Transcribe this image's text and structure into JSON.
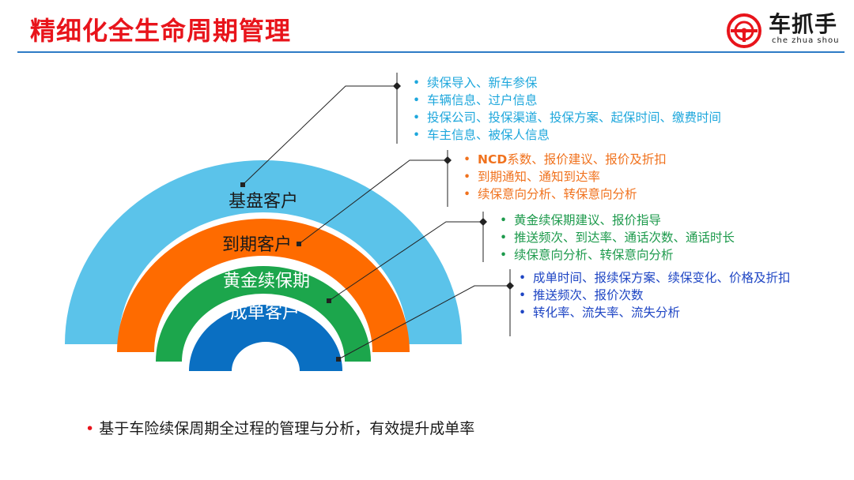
{
  "title": "精细化全生命周期管理",
  "logo": {
    "text": "车抓手",
    "subtext": "che zhua shou",
    "icon": "steering-wheel-logo-icon"
  },
  "rings": [
    {
      "label": "基盘客户",
      "color": "#5bc3ea"
    },
    {
      "label": "到期客户",
      "color": "#fe6b00"
    },
    {
      "label": "黄金续保期",
      "color": "#1ca64c"
    },
    {
      "label": "成单客户",
      "color": "#0a6fc2"
    }
  ],
  "groups": [
    {
      "items": [
        "续保导入、新车参保",
        "车辆信息、过户信息",
        "投保公司、投保渠道、投保方案、起保时间、缴费时间",
        "车主信息、被保人信息"
      ]
    },
    {
      "prefix": "NCD",
      "items": [
        "系数、报价建议、报价及折扣",
        "到期通知、通知到达率",
        "续保意向分析、转保意向分析"
      ]
    },
    {
      "items": [
        "黄金续保期建议、报价指导",
        "推送频次、到达率、通话次数、通话时长",
        "续保意向分析、转保意向分析"
      ]
    },
    {
      "items": [
        "成单时间、报续保方案、续保变化、价格及折扣",
        "推送频次、报价次数",
        "转化率、流失率、流失分析"
      ]
    }
  ],
  "footer": "基于车险续保周期全过程的管理与分析，有效提升成单率"
}
